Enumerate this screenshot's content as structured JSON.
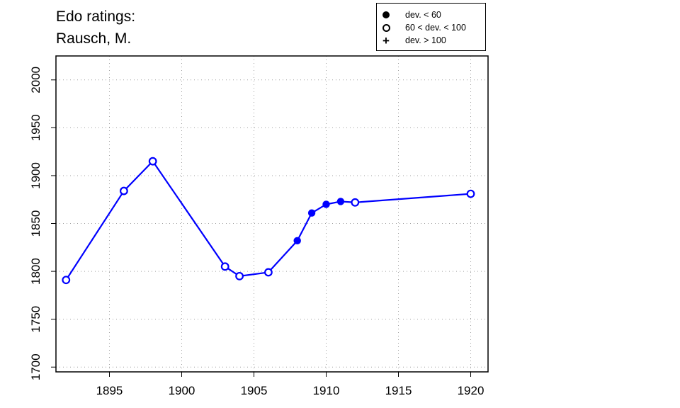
{
  "title_lines": [
    "Edo ratings:",
    "Rausch, M."
  ],
  "legend": [
    {
      "symbol": "filled-circle",
      "label": "dev. < 60"
    },
    {
      "symbol": "open-circle",
      "label": "60 < dev. < 100"
    },
    {
      "symbol": "plus",
      "label": "dev. > 100"
    }
  ],
  "colors": {
    "series": "#0000ff",
    "axis": "#000000",
    "grid": "#a0a0a0"
  },
  "chart_data": {
    "type": "line",
    "title": "Edo ratings: Rausch, M.",
    "xlabel": "",
    "ylabel": "",
    "xlim": [
      1891.3,
      1921.2
    ],
    "ylim": [
      1695,
      2025
    ],
    "xticks": [
      1895,
      1900,
      1905,
      1910,
      1915,
      1920
    ],
    "yticks": [
      1700,
      1750,
      1800,
      1850,
      1900,
      1950,
      2000
    ],
    "grid": true,
    "legend_position": "top-right",
    "series": [
      {
        "points": [
          {
            "x": 1892,
            "y": 1791,
            "marker": "open"
          },
          {
            "x": 1896,
            "y": 1884,
            "marker": "open"
          },
          {
            "x": 1898,
            "y": 1915,
            "marker": "open"
          },
          {
            "x": 1903,
            "y": 1805,
            "marker": "open"
          },
          {
            "x": 1904,
            "y": 1795,
            "marker": "open"
          },
          {
            "x": 1906,
            "y": 1799,
            "marker": "open"
          },
          {
            "x": 1908,
            "y": 1832,
            "marker": "filled"
          },
          {
            "x": 1909,
            "y": 1861,
            "marker": "filled"
          },
          {
            "x": 1910,
            "y": 1870,
            "marker": "filled"
          },
          {
            "x": 1911,
            "y": 1873,
            "marker": "filled"
          },
          {
            "x": 1912,
            "y": 1872,
            "marker": "open"
          },
          {
            "x": 1920,
            "y": 1881,
            "marker": "open"
          }
        ]
      }
    ]
  }
}
